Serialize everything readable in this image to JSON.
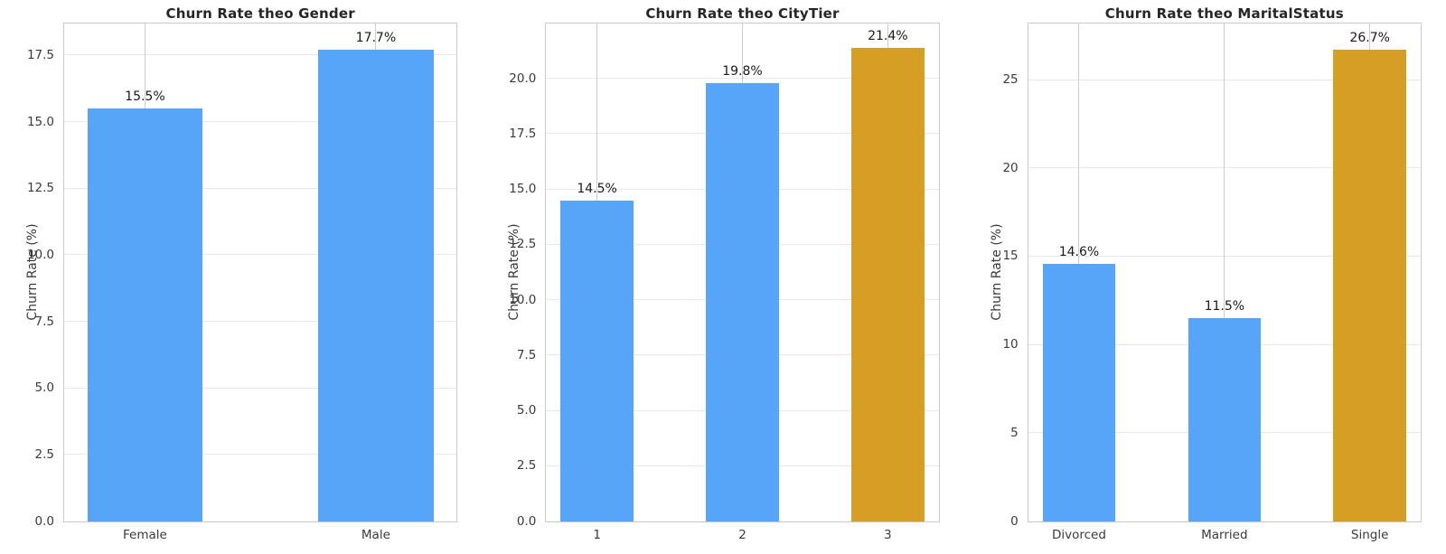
{
  "figure": {
    "background": "#ffffff"
  },
  "styles": {
    "bar_blue": "#57a5f8",
    "bar_highlight_orange": "#d59e24",
    "grid_vertical_color": "#cccccc",
    "grid_horizontal_color": "#e8e8e8",
    "spine_color": "#c9c9c9",
    "tick_text_color": "#3a3a3a",
    "title_text_color": "#262626"
  },
  "chart_data": [
    {
      "type": "bar",
      "title": "Churn Rate theo Gender",
      "ylabel": "Churn Rate (%)",
      "xlabel": "",
      "categories": [
        "Female",
        "Male"
      ],
      "values": [
        15.5,
        17.7
      ],
      "bar_labels": [
        "15.5%",
        "17.7%"
      ],
      "bar_colors": [
        "#57a5f8",
        "#57a5f8"
      ],
      "ytick_values": [
        0,
        2.5,
        5,
        7.5,
        10,
        12.5,
        15,
        17.5
      ],
      "ytick_labels": [
        "0.0",
        "2.5",
        "5.0",
        "7.5",
        "10.0",
        "12.5",
        "15.0",
        "17.5"
      ],
      "ylim": [
        0,
        18.7
      ],
      "grid": "both",
      "legend": "none"
    },
    {
      "type": "bar",
      "title": "Churn Rate theo CityTier",
      "ylabel": "Churn Rate (%)",
      "xlabel": "",
      "categories": [
        "1",
        "2",
        "3"
      ],
      "values": [
        14.5,
        19.8,
        21.4
      ],
      "bar_labels": [
        "14.5%",
        "19.8%",
        "21.4%"
      ],
      "bar_colors": [
        "#57a5f8",
        "#57a5f8",
        "#d59e24"
      ],
      "ytick_values": [
        0,
        2.5,
        5,
        7.5,
        10,
        12.5,
        15,
        17.5,
        20
      ],
      "ytick_labels": [
        "0.0",
        "2.5",
        "5.0",
        "7.5",
        "10.0",
        "12.5",
        "15.0",
        "17.5",
        "20.0"
      ],
      "ylim": [
        0,
        22.5
      ],
      "grid": "both",
      "legend": "none"
    },
    {
      "type": "bar",
      "title": "Churn Rate theo MaritalStatus",
      "ylabel": "Churn Rate (%)",
      "xlabel": "",
      "categories": [
        "Divorced",
        "Married",
        "Single"
      ],
      "values": [
        14.6,
        11.5,
        26.7
      ],
      "bar_labels": [
        "14.6%",
        "11.5%",
        "26.7%"
      ],
      "bar_colors": [
        "#57a5f8",
        "#57a5f8",
        "#d59e24"
      ],
      "ytick_values": [
        0,
        5,
        10,
        15,
        20,
        25
      ],
      "ytick_labels": [
        "0",
        "5",
        "10",
        "15",
        "20",
        "25"
      ],
      "ylim": [
        0,
        28.2
      ],
      "grid": "both",
      "legend": "none"
    }
  ]
}
